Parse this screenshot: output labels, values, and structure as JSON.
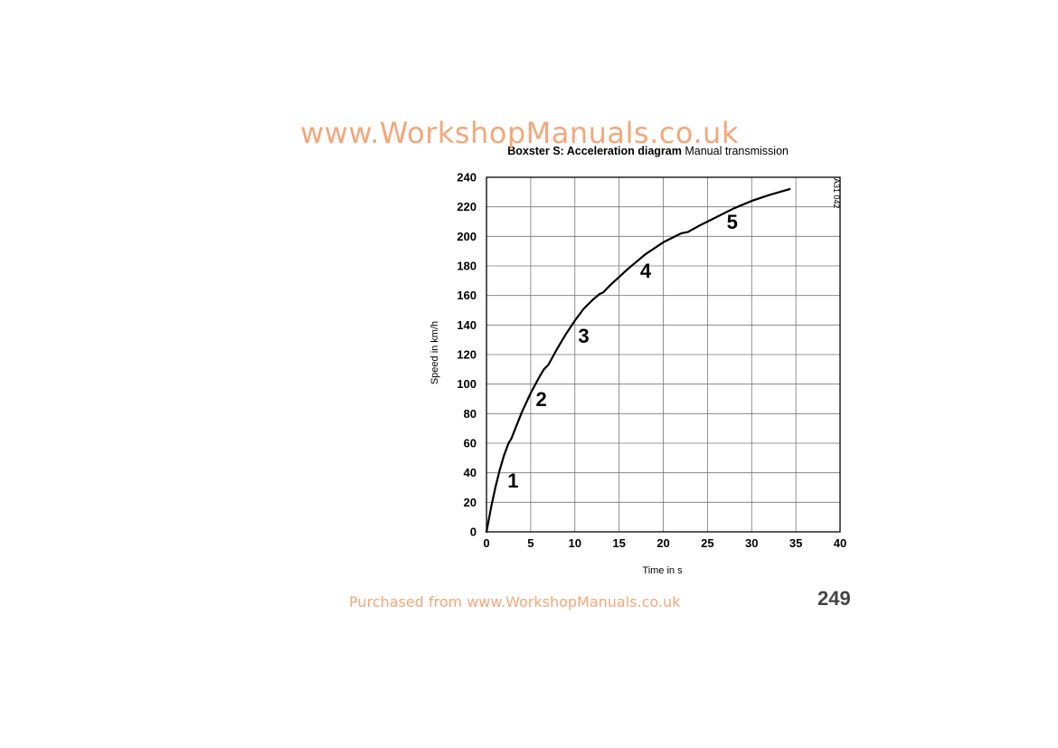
{
  "watermark_top": "www.WorkshopManuals.co.uk",
  "watermark_bottom": "Purchased from www.WorkshopManuals.co.uk",
  "page_number": "249",
  "chart_data": {
    "type": "line",
    "title": "Boxster S: Acceleration diagram",
    "subtitle": "Manual transmission",
    "xlabel": "Time in s",
    "ylabel": "Speed in km/h",
    "reference_code": "A31 042",
    "xlim": [
      0,
      40
    ],
    "ylim": [
      0,
      240
    ],
    "x_ticks": [
      0,
      5,
      10,
      15,
      20,
      25,
      30,
      35,
      40
    ],
    "y_ticks": [
      0,
      20,
      40,
      60,
      80,
      100,
      120,
      140,
      160,
      180,
      200,
      220,
      240
    ],
    "grid": true,
    "series": [
      {
        "color": "#000000",
        "x": [
          0,
          0.5,
          1.0,
          1.5,
          2.0,
          2.5,
          2.8,
          3.2,
          4.0,
          5.0,
          6.0,
          6.5,
          7.0,
          8.0,
          9.0,
          10.0,
          11.0,
          12.0,
          12.8,
          13.2,
          14.0,
          16.0,
          18.0,
          20.0,
          22.0,
          22.8,
          24.0,
          26.0,
          28.0,
          30.0,
          32.0,
          34.3
        ],
        "y": [
          0,
          16,
          30,
          42,
          52,
          60,
          63,
          69,
          81,
          94,
          105,
          110,
          113,
          124,
          134,
          143,
          151,
          157,
          161,
          162,
          167,
          178,
          188,
          196,
          202,
          203,
          207,
          213,
          219,
          224,
          228,
          232
        ]
      }
    ],
    "annotations": [
      {
        "text": "1",
        "x": 3.0,
        "y": 30
      },
      {
        "text": "2",
        "x": 6.2,
        "y": 85
      },
      {
        "text": "3",
        "x": 11.0,
        "y": 128
      },
      {
        "text": "4",
        "x": 18.0,
        "y": 172
      },
      {
        "text": "5",
        "x": 27.8,
        "y": 205
      }
    ]
  }
}
